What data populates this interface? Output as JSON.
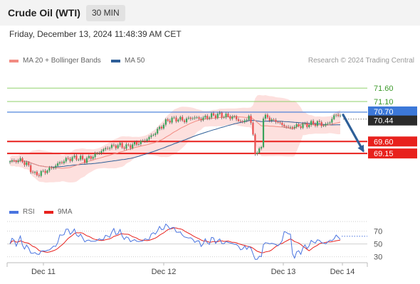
{
  "instrument": {
    "title": "Crude Oil (WTI)",
    "timeframe": "30 MIN"
  },
  "timestamp": "Friday, December 13, 2024 11:48:39 AM CET",
  "legend": {
    "ma20": {
      "label": "MA 20 + Bollinger Bands",
      "color": "#f28b82"
    },
    "ma50": {
      "label": "MA 50",
      "color": "#2e5f98"
    }
  },
  "credit": "Research © 2024 Trading Central",
  "price_levels": {
    "resistance": [
      {
        "label": "71.60",
        "value": 71.6,
        "color": "#8fd16a"
      },
      {
        "label": "71.10",
        "value": 71.1,
        "color": "#8fd16a"
      }
    ],
    "pivot": {
      "label": "70.70",
      "value": 70.7,
      "color": "#3c78d8"
    },
    "current": {
      "label": "70.44",
      "value": 70.44,
      "color": "#2b2b2b"
    },
    "support": [
      {
        "label": "69.60",
        "value": 69.6,
        "color": "#e8211d"
      },
      {
        "label": "69.15",
        "value": 69.15,
        "color": "#e8211d"
      }
    ]
  },
  "rsi": {
    "legend": {
      "rsi": "RSI",
      "ma": "9MA",
      "rsi_color": "#4a74e0",
      "ma_color": "#e8211d"
    },
    "levels": [
      70,
      50,
      30
    ],
    "current": 62
  },
  "x_axis": {
    "ticks": [
      "Dec 11",
      "Dec 12",
      "Dec 13",
      "Dec 14"
    ]
  },
  "chart_data": {
    "type": "candlestick",
    "ylim": [
      67.45,
      72.35
    ],
    "rsi_ylim": [
      23,
      85
    ],
    "current_price": 70.44,
    "forecast": {
      "from": 70.6,
      "to": 69.15
    },
    "anchors": [
      [
        0,
        68.85
      ],
      [
        5,
        68.9
      ],
      [
        8,
        68.75
      ],
      [
        12,
        68.35
      ],
      [
        16,
        68.45
      ],
      [
        20,
        68.6
      ],
      [
        24,
        68.8
      ],
      [
        28,
        68.95
      ],
      [
        32,
        69.0
      ],
      [
        36,
        68.9
      ],
      [
        40,
        69.05
      ],
      [
        44,
        69.25
      ],
      [
        48,
        69.4
      ],
      [
        52,
        69.45
      ],
      [
        56,
        69.4
      ],
      [
        60,
        69.5
      ],
      [
        64,
        69.6
      ],
      [
        68,
        69.8
      ],
      [
        72,
        70.1
      ],
      [
        76,
        70.4
      ],
      [
        80,
        70.45
      ],
      [
        84,
        70.4
      ],
      [
        88,
        70.5
      ],
      [
        92,
        70.45
      ],
      [
        96,
        70.55
      ],
      [
        100,
        70.6
      ],
      [
        104,
        70.55
      ],
      [
        108,
        70.5
      ],
      [
        112,
        70.3
      ],
      [
        115,
        70.55
      ],
      [
        117,
        69.9
      ],
      [
        118,
        69.2
      ],
      [
        119,
        69.1
      ],
      [
        121,
        69.5
      ],
      [
        122,
        70.45
      ],
      [
        124,
        70.55
      ],
      [
        126,
        70.35
      ],
      [
        128,
        70.4
      ],
      [
        130,
        70.25
      ],
      [
        132,
        70.2
      ],
      [
        134,
        70.1
      ],
      [
        136,
        70.15
      ],
      [
        140,
        70.2
      ],
      [
        144,
        70.25
      ],
      [
        148,
        70.3
      ],
      [
        152,
        70.2
      ],
      [
        154,
        70.35
      ],
      [
        156,
        70.55
      ],
      [
        158,
        70.6
      ]
    ],
    "candles": [],
    "ma20": [],
    "ma50": [],
    "bb_upper": [],
    "bb_lower": [],
    "rsi": [],
    "rsi_ma": []
  }
}
